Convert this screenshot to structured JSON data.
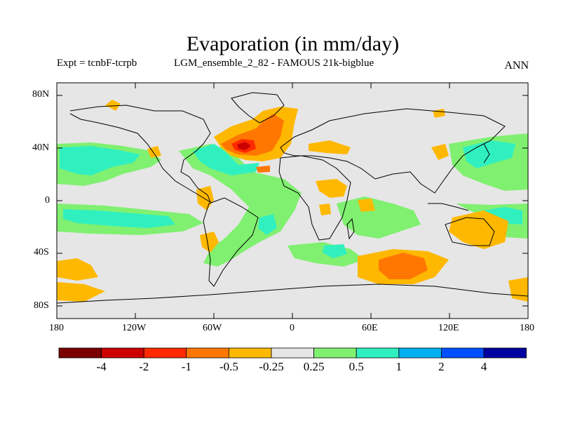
{
  "title": "Evaporation (in mm/day)",
  "experiment_label": "Expt = tcnbF-tcrpb",
  "run_label": "LGM_ensemble_2_82 - FAMOUS 21k-bigblue",
  "season": "ANN",
  "axes": {
    "lat_ticks": [
      "80N",
      "40N",
      "0",
      "40S",
      "80S"
    ],
    "lon_ticks": [
      "180",
      "120W",
      "60W",
      "0",
      "60E",
      "120E",
      "180"
    ]
  },
  "colorbar": {
    "colors": [
      "#7a0000",
      "#cc0000",
      "#ff2a00",
      "#ff7700",
      "#ffb800",
      "#e6e6e6",
      "#80f070",
      "#30f0c0",
      "#00b0f0",
      "#0050ff",
      "#0000a0"
    ],
    "labels": [
      "-4",
      "-2",
      "-1",
      "-0.5",
      "-0.25",
      "0.25",
      "0.5",
      "1",
      "2",
      "4"
    ]
  },
  "colors": {
    "background_land_ocean": "#e6e6e6",
    "coastline": "#000000"
  }
}
